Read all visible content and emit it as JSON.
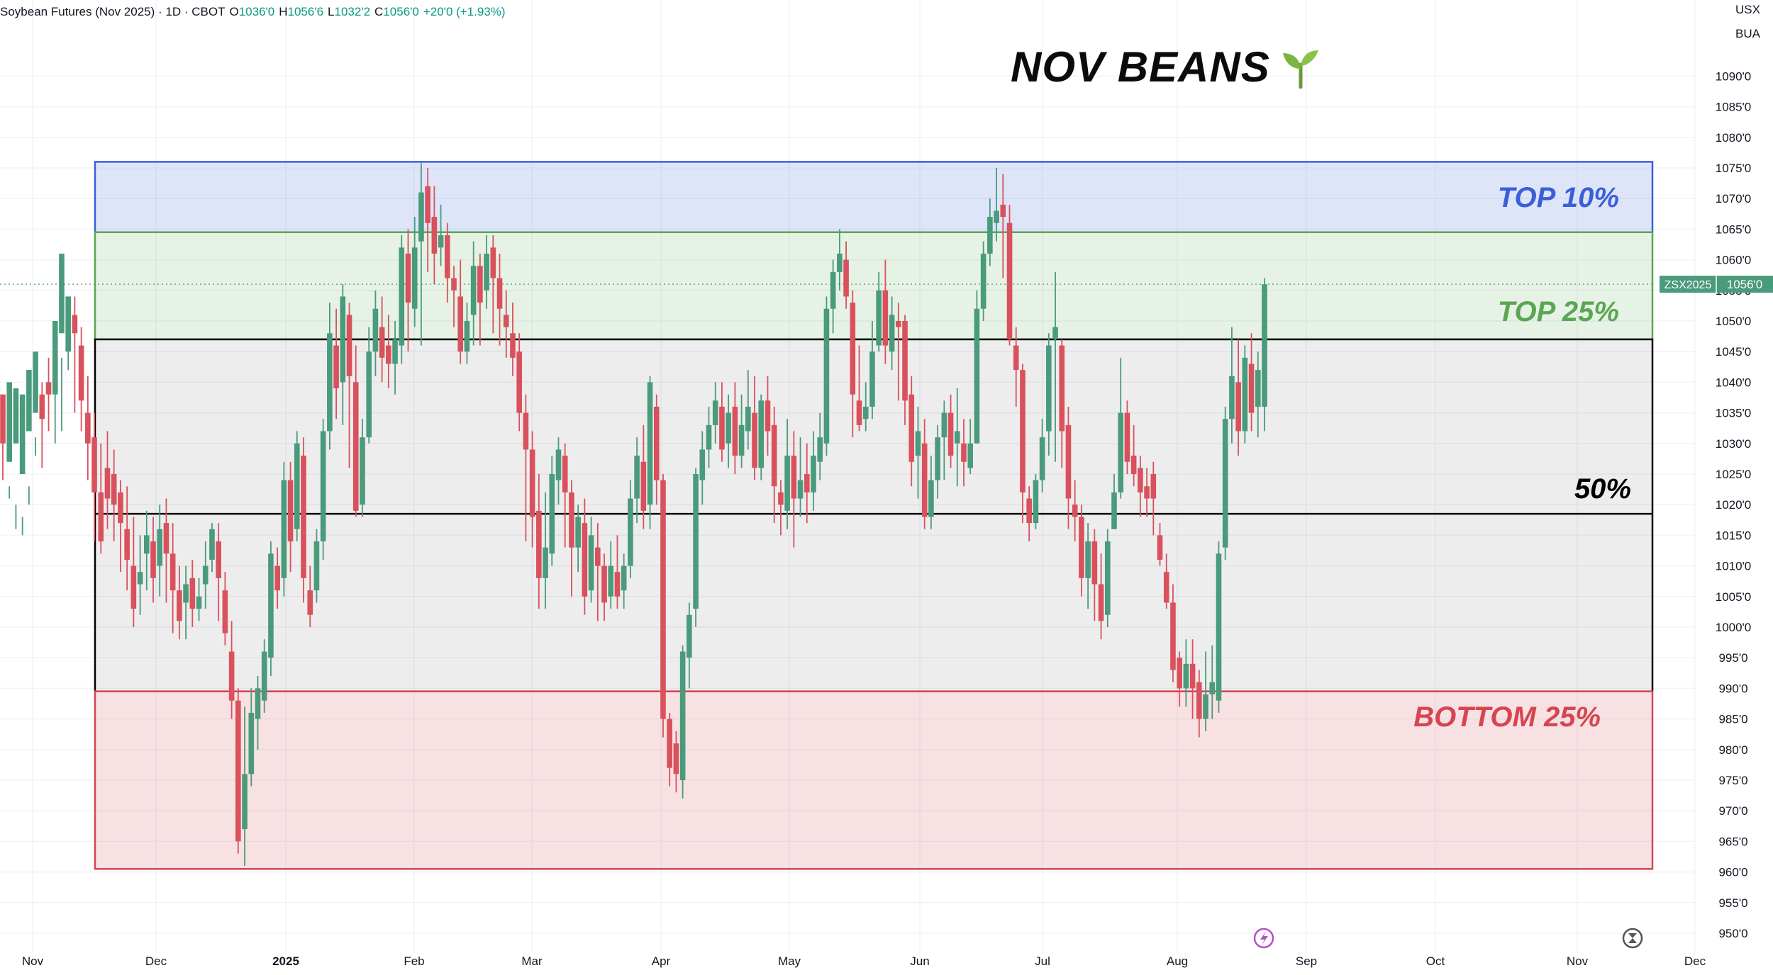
{
  "header": {
    "symbol_desc": "Soybean Futures (Nov 2025) · 1D · CBOT",
    "o_label": "O",
    "o_value": "1036'0",
    "h_label": "H",
    "h_value": "1056'6",
    "l_label": "L",
    "l_value": "1032'2",
    "c_label": "C",
    "c_value": "1056'0",
    "change": "+20'0 (+1.93%)"
  },
  "corner": {
    "currency": "USX",
    "unit": "BUA"
  },
  "title": "NOV BEANS",
  "price_tag": {
    "symbol": "ZSX2025",
    "value": "1056'0"
  },
  "colors": {
    "up": "#4a9a7c",
    "down": "#d9515c",
    "top10": "#3b5fd9",
    "top25": "#5aa752",
    "bottom25": "#d64550",
    "mid": "#000000"
  },
  "chart_data": {
    "type": "candlestick",
    "ylim": [
      947,
      1095
    ],
    "yticks": [
      "1090'0",
      "1085'0",
      "1080'0",
      "1075'0",
      "1070'0",
      "1065'0",
      "1060'0",
      "1055'0",
      "1050'0",
      "1045'0",
      "1040'0",
      "1035'0",
      "1030'0",
      "1025'0",
      "1020'0",
      "1015'0",
      "1010'0",
      "1005'0",
      "1000'0",
      "995'0",
      "990'0",
      "985'0",
      "980'0",
      "975'0",
      "970'0",
      "965'0",
      "960'0",
      "955'0",
      "950'0"
    ],
    "xticks": [
      "Nov",
      "Dec",
      "2025",
      "Feb",
      "Mar",
      "Apr",
      "May",
      "Jun",
      "Jul",
      "Aug",
      "Sep",
      "Oct",
      "Nov",
      "Dec"
    ],
    "zones": [
      {
        "label": "TOP 10%",
        "from": 1064.5,
        "to": 1076,
        "color": "top10"
      },
      {
        "label": "TOP 25%",
        "from": 1047,
        "to": 1064.5,
        "color": "top25"
      },
      {
        "label": "",
        "from": 989.5,
        "to": 1047,
        "color": "mid"
      },
      {
        "label": "BOTTOM 25%",
        "from": 960.5,
        "to": 989.5,
        "color": "bottom25"
      }
    ],
    "midline": {
      "label": "50%",
      "value": 1018.5
    },
    "last_price": 1056,
    "candles": [
      [
        1038,
        1030,
        1037,
        1024
      ],
      [
        1027,
        1040,
        1023,
        1021
      ],
      [
        1030,
        1039,
        1020,
        1016
      ],
      [
        1025,
        1038,
        1018,
        1015
      ],
      [
        1032,
        1042,
        1020,
        1023
      ],
      [
        1035,
        1045,
        1031,
        1028
      ],
      [
        1038,
        1034,
        1040,
        1026
      ],
      [
        1040,
        1038,
        1044,
        1032
      ],
      [
        1038,
        1050,
        1046,
        1030
      ],
      [
        1048,
        1061,
        1044,
        1032
      ],
      [
        1045,
        1054,
        1052,
        1042
      ],
      [
        1051,
        1048,
        1054,
        1035
      ],
      [
        1046,
        1037,
        1049,
        1032
      ],
      [
        1035,
        1030,
        1041,
        1024
      ],
      [
        1031,
        1022,
        1035,
        1014
      ],
      [
        1022,
        1014,
        1030,
        1012
      ],
      [
        1026,
        1021,
        1032,
        1016
      ],
      [
        1025,
        1020,
        1029,
        1014
      ],
      [
        1022,
        1017,
        1024,
        1009
      ],
      [
        1016,
        1011,
        1023,
        1006
      ],
      [
        1010,
        1003,
        1018,
        1000
      ],
      [
        1007,
        1009,
        1015,
        1002
      ],
      [
        1012,
        1015,
        1019,
        1006
      ],
      [
        1014,
        1008,
        1018,
        1004
      ],
      [
        1010,
        1016,
        1020,
        1005
      ],
      [
        1017,
        1012,
        1021,
        1004
      ],
      [
        1012,
        1006,
        1017,
        999
      ],
      [
        1006,
        1001,
        1010,
        998
      ],
      [
        1004,
        1007,
        1010,
        998
      ],
      [
        1008,
        1003,
        1011,
        1000
      ],
      [
        1003,
        1005,
        1008,
        1001
      ],
      [
        1007,
        1010,
        1014,
        1003
      ],
      [
        1011,
        1016,
        1017,
        1009
      ],
      [
        1014,
        1008,
        1017,
        1001
      ],
      [
        1006,
        999,
        1009,
        997
      ],
      [
        996,
        988,
        1001,
        985
      ],
      [
        988,
        965,
        990,
        963
      ],
      [
        967,
        976,
        987,
        961
      ],
      [
        976,
        986,
        990,
        974
      ],
      [
        985,
        990,
        992,
        980
      ],
      [
        988,
        996,
        998,
        986
      ],
      [
        995,
        1012,
        1014,
        992
      ],
      [
        1010,
        1006,
        1013,
        1003
      ],
      [
        1008,
        1024,
        1027,
        1005
      ],
      [
        1024,
        1014,
        1027,
        1009
      ],
      [
        1016,
        1030,
        1032,
        1014
      ],
      [
        1028,
        1008,
        1031,
        1004
      ],
      [
        1006,
        1002,
        1010,
        1000
      ],
      [
        1006,
        1014,
        1016,
        1004
      ],
      [
        1014,
        1032,
        1034,
        1011
      ],
      [
        1032,
        1048,
        1053,
        1029
      ],
      [
        1046,
        1039,
        1052,
        1034
      ],
      [
        1040,
        1054,
        1056,
        1033
      ],
      [
        1051,
        1041,
        1053,
        1026
      ],
      [
        1040,
        1019,
        1046,
        1018
      ],
      [
        1020,
        1031,
        1034,
        1018
      ],
      [
        1031,
        1045,
        1049,
        1030
      ],
      [
        1045,
        1052,
        1055,
        1041
      ],
      [
        1049,
        1044,
        1054,
        1040
      ],
      [
        1046,
        1043,
        1051,
        1039
      ],
      [
        1043,
        1047,
        1050,
        1038
      ],
      [
        1046,
        1062,
        1064,
        1043
      ],
      [
        1061,
        1053,
        1065,
        1045
      ],
      [
        1052,
        1062,
        1067,
        1049
      ],
      [
        1063,
        1071,
        1076,
        1046
      ],
      [
        1072,
        1066,
        1075,
        1058
      ],
      [
        1067,
        1061,
        1072,
        1056
      ],
      [
        1062,
        1064,
        1069,
        1059
      ],
      [
        1064,
        1057,
        1066,
        1053
      ],
      [
        1057,
        1055,
        1059,
        1049
      ],
      [
        1054,
        1045,
        1060,
        1043
      ],
      [
        1045,
        1050,
        1053,
        1043
      ],
      [
        1051,
        1059,
        1063,
        1046
      ],
      [
        1059,
        1053,
        1061,
        1046
      ],
      [
        1055,
        1061,
        1064,
        1052
      ],
      [
        1062,
        1057,
        1064,
        1048
      ],
      [
        1057,
        1052,
        1061,
        1046
      ],
      [
        1051,
        1049,
        1055,
        1044
      ],
      [
        1048,
        1044,
        1053,
        1041
      ],
      [
        1045,
        1035,
        1048,
        1032
      ],
      [
        1035,
        1029,
        1038,
        1014
      ],
      [
        1029,
        1018,
        1032,
        1013
      ],
      [
        1019,
        1008,
        1025,
        1003
      ],
      [
        1008,
        1013,
        1022,
        1003
      ],
      [
        1012,
        1025,
        1028,
        1010
      ],
      [
        1024,
        1029,
        1031,
        1020
      ],
      [
        1028,
        1022,
        1030,
        1013
      ],
      [
        1022,
        1013,
        1024,
        1005
      ],
      [
        1013,
        1018,
        1020,
        1009
      ],
      [
        1017,
        1005,
        1021,
        1002
      ],
      [
        1006,
        1015,
        1018,
        1004
      ],
      [
        1013,
        1010,
        1017,
        1001
      ],
      [
        1010,
        1004,
        1012,
        1001
      ],
      [
        1005,
        1010,
        1014,
        1003
      ],
      [
        1009,
        1005,
        1015,
        1003
      ],
      [
        1006,
        1010,
        1012,
        1003
      ],
      [
        1010,
        1021,
        1024,
        1008
      ],
      [
        1021,
        1028,
        1031,
        1017
      ],
      [
        1027,
        1019,
        1033,
        1016
      ],
      [
        1020,
        1040,
        1041,
        1016
      ],
      [
        1036,
        1024,
        1038,
        1020
      ],
      [
        1024,
        985,
        1025,
        982
      ],
      [
        985,
        977,
        986,
        974
      ],
      [
        981,
        976,
        983,
        973
      ],
      [
        975,
        996,
        997,
        972
      ],
      [
        995,
        1002,
        1004,
        990
      ],
      [
        1003,
        1025,
        1026,
        1000
      ],
      [
        1024,
        1029,
        1032,
        1020
      ],
      [
        1029,
        1033,
        1036,
        1026
      ],
      [
        1033,
        1037,
        1040,
        1030
      ],
      [
        1036,
        1029,
        1040,
        1027
      ],
      [
        1030,
        1035,
        1038,
        1026
      ],
      [
        1036,
        1028,
        1040,
        1025
      ],
      [
        1028,
        1033,
        1038,
        1026
      ],
      [
        1032,
        1036,
        1042,
        1029
      ],
      [
        1035,
        1026,
        1041,
        1024
      ],
      [
        1026,
        1037,
        1038,
        1024
      ],
      [
        1037,
        1032,
        1041,
        1028
      ],
      [
        1033,
        1023,
        1036,
        1017
      ],
      [
        1022,
        1020,
        1024,
        1015
      ],
      [
        1019,
        1028,
        1034,
        1016
      ],
      [
        1028,
        1021,
        1032,
        1013
      ],
      [
        1021,
        1024,
        1031,
        1018
      ],
      [
        1025,
        1022,
        1030,
        1017
      ],
      [
        1022,
        1028,
        1032,
        1019
      ],
      [
        1027,
        1031,
        1035,
        1024
      ],
      [
        1030,
        1052,
        1054,
        1028
      ],
      [
        1052,
        1058,
        1060,
        1048
      ],
      [
        1058,
        1061,
        1065,
        1055
      ],
      [
        1060,
        1054,
        1063,
        1052
      ],
      [
        1053,
        1038,
        1055,
        1031
      ],
      [
        1037,
        1033,
        1046,
        1032
      ],
      [
        1034,
        1036,
        1040,
        1032
      ],
      [
        1036,
        1045,
        1050,
        1034
      ],
      [
        1046,
        1055,
        1058,
        1045
      ],
      [
        1055,
        1046,
        1060,
        1043
      ],
      [
        1045,
        1051,
        1054,
        1042
      ],
      [
        1050,
        1049,
        1053,
        1037
      ],
      [
        1050,
        1037,
        1051,
        1033
      ],
      [
        1038,
        1027,
        1041,
        1023
      ],
      [
        1028,
        1032,
        1036,
        1021
      ],
      [
        1030,
        1018,
        1034,
        1016
      ],
      [
        1018,
        1024,
        1028,
        1016
      ],
      [
        1024,
        1031,
        1033,
        1021
      ],
      [
        1031,
        1035,
        1037,
        1024
      ],
      [
        1035,
        1028,
        1038,
        1026
      ],
      [
        1030,
        1032,
        1039,
        1023
      ],
      [
        1030,
        1027,
        1034,
        1023
      ],
      [
        1026,
        1030,
        1034,
        1025
      ],
      [
        1030,
        1052,
        1055,
        1030
      ],
      [
        1052,
        1061,
        1063,
        1050
      ],
      [
        1061,
        1067,
        1070,
        1059
      ],
      [
        1066,
        1068,
        1075,
        1063
      ],
      [
        1069,
        1067,
        1074,
        1057
      ],
      [
        1066,
        1047,
        1069,
        1046
      ],
      [
        1046,
        1042,
        1049,
        1036
      ],
      [
        1042,
        1022,
        1043,
        1017
      ],
      [
        1021,
        1017,
        1023,
        1014
      ],
      [
        1017,
        1024,
        1025,
        1016
      ],
      [
        1024,
        1031,
        1034,
        1022
      ],
      [
        1032,
        1046,
        1048,
        1028
      ],
      [
        1047,
        1049,
        1058,
        1027
      ],
      [
        1046,
        1032,
        1047,
        1026
      ],
      [
        1033,
        1021,
        1036,
        1016
      ],
      [
        1020,
        1018,
        1024,
        1014
      ],
      [
        1018,
        1008,
        1020,
        1005
      ],
      [
        1008,
        1014,
        1017,
        1003
      ],
      [
        1014,
        1007,
        1016,
        1001
      ],
      [
        1007,
        1001,
        1012,
        998
      ],
      [
        1002,
        1014,
        1016,
        1000
      ],
      [
        1016,
        1022,
        1025,
        1016
      ],
      [
        1022,
        1035,
        1044,
        1021
      ],
      [
        1035,
        1027,
        1037,
        1025
      ],
      [
        1028,
        1025,
        1033,
        1023
      ],
      [
        1026,
        1022,
        1028,
        1018
      ],
      [
        1023,
        1021,
        1026,
        1018
      ],
      [
        1025,
        1021,
        1027,
        1015
      ],
      [
        1015,
        1011,
        1017,
        1010
      ],
      [
        1009,
        1004,
        1012,
        1003
      ],
      [
        1004,
        993,
        1007,
        991
      ],
      [
        995,
        990,
        996,
        987
      ],
      [
        990,
        994,
        998,
        987
      ],
      [
        994,
        990,
        998,
        985
      ],
      [
        991,
        985,
        993,
        982
      ],
      [
        985,
        989,
        996,
        983
      ],
      [
        989,
        991,
        997,
        985
      ],
      [
        988,
        1012,
        1014,
        986
      ],
      [
        1013,
        1034,
        1036,
        1011
      ],
      [
        1034,
        1041,
        1049,
        1030
      ],
      [
        1040,
        1032,
        1047,
        1028
      ],
      [
        1032,
        1044,
        1046,
        1030
      ],
      [
        1043,
        1035,
        1048,
        1032
      ],
      [
        1036,
        1042,
        1045,
        1031
      ],
      [
        1036,
        1056,
        1057,
        1032
      ]
    ]
  }
}
